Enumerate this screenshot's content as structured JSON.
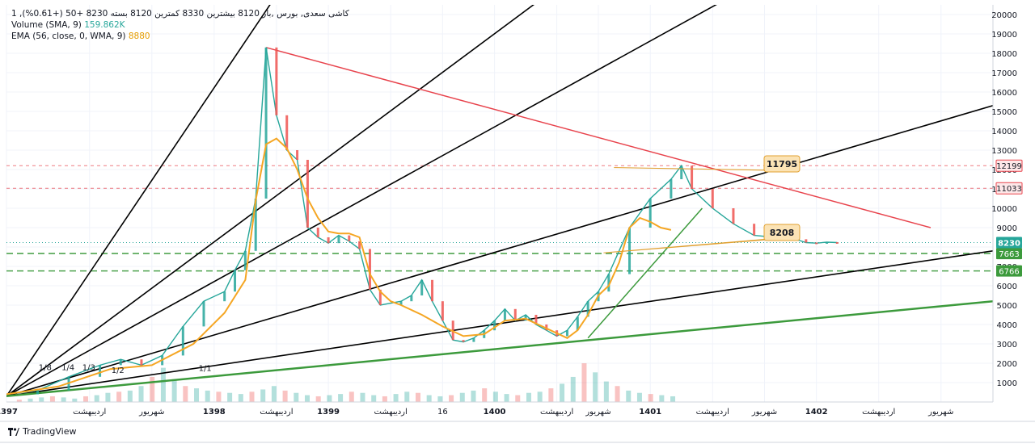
{
  "legend": {
    "ohlc_line": "1 ,کاشی سعدی, بورس ,باز 8120 بیشترین 8330 کمترین 8120 بسته 8230 +50 (+0.61%)",
    "volume_label": "Volume (SMA, 9)",
    "volume_value": "159.862K",
    "ema_label": "EMA (56, close, 0, WMA, 9)",
    "ema_value": "8880"
  },
  "branding": "TradingView",
  "colors": {
    "accent_green": "#26a69a",
    "ema_orange": "#f5a623",
    "trend_green": "#3c9a3c",
    "resistance_red": "#e8434c",
    "fan_black": "#000000",
    "price_tag_blue": "#26a69a"
  },
  "chart_data": {
    "type": "line",
    "title": "",
    "yticks": [
      1000,
      2000,
      3000,
      4000,
      5000,
      6000,
      7000,
      8000,
      9000,
      10000,
      11000,
      12000,
      13000,
      14000,
      15000,
      16000,
      17000,
      18000,
      19000,
      20000
    ],
    "ylim": [
      0,
      20500
    ],
    "xticks": [
      "1397",
      "اردیبهشت",
      "شهریور",
      "1398",
      "اردیبهشت",
      "1399",
      "اردیبهشت",
      "16",
      "1400",
      "اردیبهشت",
      "شهریور",
      "1401",
      "اردیبهشت",
      "شهریور",
      "1402",
      "اردیبهشت",
      "شهریور"
    ],
    "grid": true,
    "price_series": {
      "name": "",
      "t": [
        0,
        3,
        6,
        9,
        11,
        13,
        15,
        17,
        19,
        21,
        22,
        23,
        24,
        25,
        26,
        27,
        28,
        29,
        30,
        31,
        32,
        33,
        34,
        35,
        36,
        38,
        39,
        40,
        41,
        42,
        43,
        44,
        45,
        46,
        47,
        48,
        49,
        50,
        51,
        52,
        53,
        54,
        55,
        56,
        57,
        58,
        60,
        62,
        64,
        65,
        66,
        68,
        70,
        72,
        74,
        75,
        76,
        77,
        78,
        79,
        80
      ],
      "v": [
        400,
        600,
        1300,
        1900,
        2200,
        1900,
        2400,
        3900,
        5200,
        5700,
        6800,
        7800,
        10500,
        18300,
        14800,
        13000,
        12500,
        9000,
        8500,
        8200,
        8600,
        8300,
        7900,
        5800,
        5000,
        5200,
        5500,
        6300,
        5200,
        4200,
        3200,
        3100,
        3300,
        3700,
        4200,
        4800,
        4200,
        4500,
        4000,
        3700,
        3400,
        3700,
        4400,
        5200,
        5700,
        6600,
        9000,
        10500,
        11500,
        12200,
        11000,
        10000,
        9200,
        8600,
        8500,
        8600,
        8400,
        8230,
        8200,
        8250,
        8230
      ]
    },
    "ema_series": {
      "name": "",
      "t": [
        0,
        5,
        10,
        14,
        18,
        21,
        23,
        24,
        25,
        26,
        27,
        28,
        29,
        30,
        31,
        32,
        33,
        34,
        35,
        36,
        37,
        38,
        40,
        42,
        44,
        46,
        48,
        50,
        52,
        54,
        55,
        56,
        57,
        58,
        59,
        60,
        61,
        62,
        63,
        64
      ],
      "v": [
        400,
        800,
        1700,
        1900,
        3000,
        4600,
        6300,
        10400,
        13300,
        13600,
        13100,
        12000,
        10500,
        9500,
        8800,
        8700,
        8700,
        8500,
        6600,
        5700,
        5200,
        5000,
        4500,
        3900,
        3400,
        3500,
        4200,
        4300,
        3800,
        3300,
        3700,
        4500,
        5500,
        6000,
        7200,
        9000,
        9500,
        9300,
        9000,
        8880
      ]
    },
    "horizontal_levels": [
      {
        "value": 12199,
        "label": "12199",
        "style": "dashed",
        "color": "#e8434c"
      },
      {
        "value": 11033,
        "label": "11033",
        "style": "dashed",
        "color": "#e8434c"
      },
      {
        "value": 7663,
        "label": "7663",
        "style": "dashed",
        "color": "#3c9a3c"
      },
      {
        "value": 6766,
        "label": "6766",
        "style": "dashed",
        "color": "#3c9a3c"
      }
    ],
    "last_price": {
      "value": 8230,
      "label": "8230"
    },
    "annotations": [
      {
        "label": "11795",
        "x": 61.5,
        "y": 11795
      },
      {
        "label": "8208",
        "x": 61,
        "y": 8208
      }
    ],
    "fan_labels": [
      "1/8",
      "1/4",
      "1/3",
      "1/2",
      "1/1"
    ],
    "fan_lines": [
      {
        "x1": 0,
        "y1": 300,
        "x2": 26,
        "y2": 21000
      },
      {
        "x1": 0,
        "y1": 300,
        "x2": 52,
        "y2": 21000
      },
      {
        "x1": 0,
        "y1": 300,
        "x2": 70,
        "y2": 21000
      },
      {
        "x1": 0,
        "y1": 300,
        "x2": 95,
        "y2": 15300
      },
      {
        "x1": 0,
        "y1": 300,
        "x2": 95,
        "y2": 7800
      }
    ],
    "trend_lines": [
      {
        "x1": 0,
        "y1": 300,
        "x2": 95,
        "y2": 5200,
        "color": "#3c9a3c",
        "width": 2.5
      },
      {
        "x1": 56,
        "y1": 3300,
        "x2": 67,
        "y2": 10000,
        "color": "#3c9a3c",
        "width": 1.5
      },
      {
        "x1": 25,
        "y1": 18300,
        "x2": 89,
        "y2": 9000,
        "color": "#e8434c",
        "width": 1.5
      }
    ],
    "volume_bars": [
      2,
      3,
      4,
      5,
      4,
      3,
      5,
      6,
      8,
      9,
      10,
      14,
      22,
      30,
      20,
      14,
      12,
      10,
      9,
      8,
      7,
      9,
      11,
      14,
      10,
      8,
      6,
      5,
      6,
      7,
      9,
      8,
      6,
      5,
      7,
      9,
      8,
      6,
      5,
      6,
      8,
      10,
      12,
      9,
      7,
      6,
      8,
      9,
      12,
      16,
      22,
      34,
      26,
      18,
      14,
      10,
      8,
      7,
      6,
      5
    ]
  }
}
